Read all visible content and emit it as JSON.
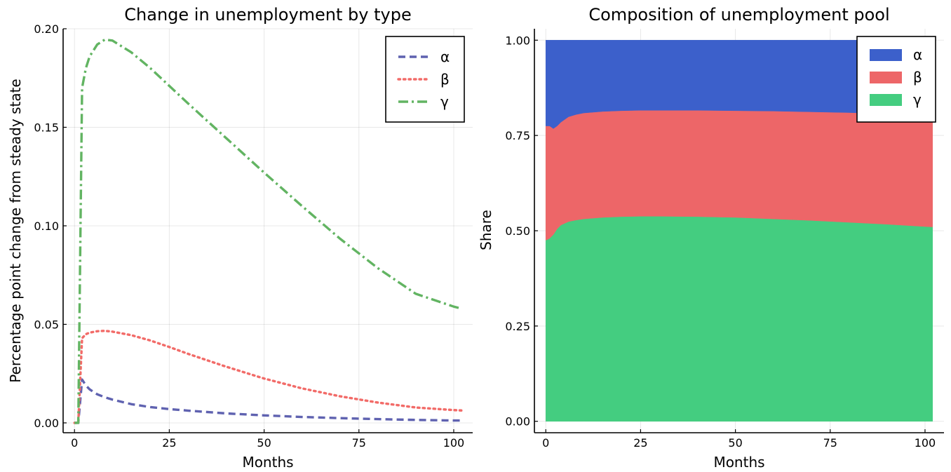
{
  "chart_data": [
    {
      "type": "line",
      "title": "Change in unemployment by type",
      "xlabel": "Months",
      "ylabel": "Percentage point change from steady state",
      "xlim": [
        -3,
        105
      ],
      "ylim": [
        -0.005,
        0.2
      ],
      "xticks": [
        "0",
        "25",
        "50",
        "75",
        "100"
      ],
      "yticks": [
        "0.00",
        "0.05",
        "0.10",
        "0.15",
        "0.20"
      ],
      "grid": true,
      "legend": "top-right",
      "x": [
        0,
        1,
        2,
        3,
        4,
        6,
        8,
        10,
        15,
        20,
        25,
        30,
        40,
        50,
        60,
        70,
        80,
        90,
        100,
        102
      ],
      "series": [
        {
          "name": "α",
          "color": "#5f62b0",
          "style": "dashed",
          "values": [
            0,
            0,
            0.022,
            0.019,
            0.017,
            0.0145,
            0.013,
            0.0118,
            0.0095,
            0.008,
            0.007,
            0.0062,
            0.0048,
            0.0038,
            0.003,
            0.0024,
            0.0019,
            0.0015,
            0.0012,
            0.0012
          ]
        },
        {
          "name": "β",
          "color": "#f26b68",
          "style": "dotted",
          "values": [
            0,
            0,
            0.043,
            0.045,
            0.0458,
            0.0465,
            0.0467,
            0.0463,
            0.0445,
            0.0418,
            0.0385,
            0.035,
            0.0285,
            0.0225,
            0.0175,
            0.0135,
            0.0103,
            0.0078,
            0.0065,
            0.0063
          ]
        },
        {
          "name": "γ",
          "color": "#62b462",
          "style": "dashdot",
          "values": [
            0,
            0,
            0.17,
            0.18,
            0.186,
            0.192,
            0.1945,
            0.194,
            0.188,
            0.18,
            0.171,
            0.162,
            0.1445,
            0.127,
            0.11,
            0.0935,
            0.0785,
            0.0655,
            0.059,
            0.058
          ]
        }
      ]
    },
    {
      "type": "area",
      "stacked": true,
      "title": "Composition of unemployment pool",
      "xlabel": "Months",
      "ylabel": "Share",
      "xlim": [
        -3,
        105
      ],
      "ylim": [
        -0.03,
        1.03
      ],
      "xticks": [
        "0",
        "25",
        "50",
        "75",
        "100"
      ],
      "yticks": [
        "0.00",
        "0.25",
        "0.50",
        "0.75",
        "1.00"
      ],
      "grid": true,
      "legend": "top-right",
      "x": [
        0,
        1,
        2,
        3,
        4,
        6,
        8,
        10,
        15,
        20,
        25,
        30,
        40,
        50,
        60,
        70,
        80,
        90,
        100,
        102
      ],
      "series": [
        {
          "name": "γ",
          "color": "#44cd80",
          "values": [
            0.475,
            0.48,
            0.49,
            0.505,
            0.515,
            0.524,
            0.528,
            0.531,
            0.535,
            0.537,
            0.538,
            0.538,
            0.537,
            0.535,
            0.531,
            0.527,
            0.522,
            0.517,
            0.511,
            0.51
          ]
        },
        {
          "name": "β",
          "color": "#ed6668",
          "values": [
            0.3,
            0.295,
            0.278,
            0.27,
            0.27,
            0.275,
            0.277,
            0.278,
            0.278,
            0.278,
            0.278,
            0.278,
            0.279,
            0.28,
            0.283,
            0.285,
            0.288,
            0.29,
            0.293,
            0.294
          ]
        },
        {
          "name": "α",
          "color": "#3c60cb",
          "values": [
            0.225,
            0.225,
            0.232,
            0.225,
            0.215,
            0.201,
            0.195,
            0.191,
            0.187,
            0.185,
            0.184,
            0.184,
            0.184,
            0.185,
            0.186,
            0.188,
            0.19,
            0.193,
            0.196,
            0.196
          ]
        }
      ]
    }
  ]
}
